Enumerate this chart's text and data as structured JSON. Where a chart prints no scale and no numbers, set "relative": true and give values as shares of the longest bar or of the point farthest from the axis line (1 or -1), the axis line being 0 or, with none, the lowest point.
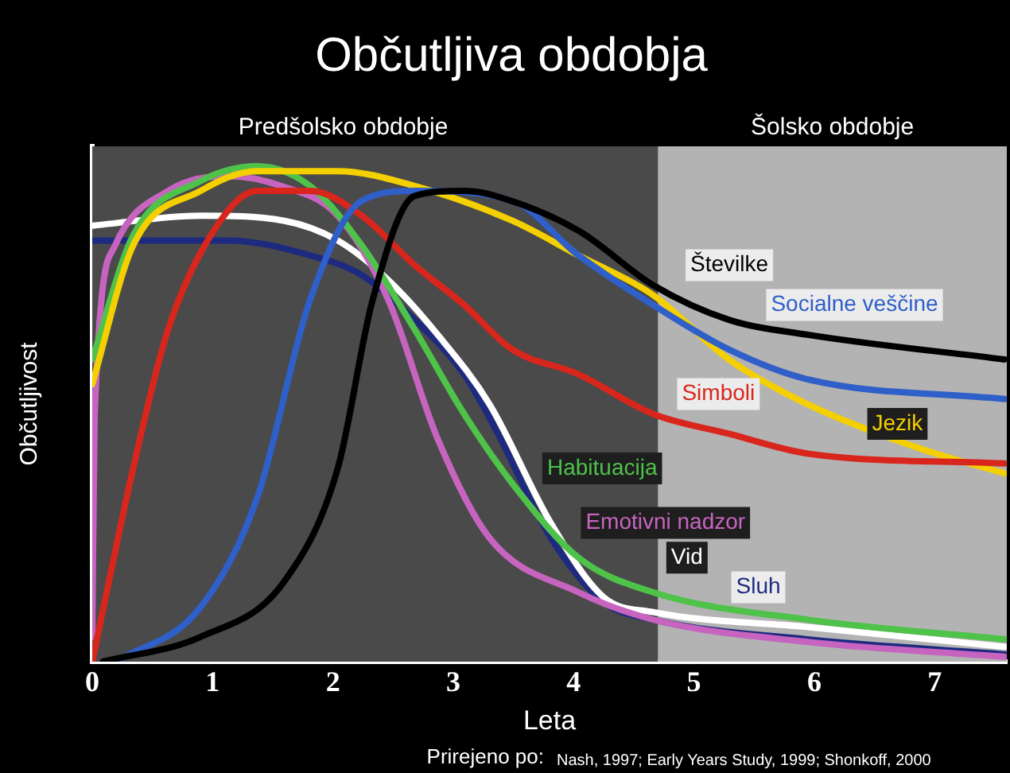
{
  "chart_data": {
    "type": "line",
    "title": "Občutljiva obdobja",
    "xlabel": "Leta",
    "ylabel": "Občutljivost",
    "relative": true,
    "xlim": [
      0,
      7.6
    ],
    "xticks": [
      0,
      1,
      2,
      3,
      4,
      5,
      6,
      7
    ],
    "grid": false,
    "legend": false,
    "marker": "none",
    "line_style": "solid",
    "bands": [
      {
        "axis": "x",
        "from": 0,
        "to": 4.7,
        "label": "Predšolsko obdobje",
        "color": "#4a4a4a"
      },
      {
        "axis": "x",
        "from": 4.7,
        "to": 7.6,
        "label": "Šolsko obdobje",
        "color": "#b3b3b3"
      }
    ],
    "annotations": [
      "Prirejeno po:",
      "Nash, 1997; Early Years Study, 1999; Shonkoff, 2000"
    ],
    "series": [
      {
        "name": "Številke",
        "color": "#000000",
        "x": [
          0.09,
          0.9,
          1.59,
          2.04,
          2.33,
          2.68,
          3.09,
          3.35,
          4.04,
          4.66,
          5.29,
          5.94,
          7.58
        ],
        "values": [
          0,
          0.05,
          0.16,
          0.39,
          0.73,
          0.94,
          0.95,
          0.94,
          0.87,
          0.76,
          0.69,
          0.66,
          0.61
        ]
      },
      {
        "name": "Socialne veščine",
        "color": "#2f5fc8",
        "x": [
          0.2,
          0.9,
          1.37,
          1.81,
          2.24,
          2.68,
          3.49,
          4.04,
          4.66,
          5.29,
          5.94,
          7.58
        ],
        "values": [
          0,
          0.11,
          0.33,
          0.73,
          0.93,
          0.95,
          0.93,
          0.82,
          0.72,
          0.63,
          0.57,
          0.53
        ]
      },
      {
        "name": "Simboli",
        "color": "#d9261c",
        "x": [
          0,
          0.34,
          0.63,
          1.01,
          1.37,
          1.81,
          2.24,
          2.68,
          3.09,
          3.49,
          4.04,
          4.66,
          5.29,
          5.94,
          7.58
        ],
        "values": [
          0,
          0.39,
          0.67,
          0.87,
          0.95,
          0.95,
          0.9,
          0.8,
          0.72,
          0.63,
          0.58,
          0.5,
          0.46,
          0.42,
          0.4
        ]
      },
      {
        "name": "Jezik",
        "color": "#f5d000",
        "x": [
          0,
          0.34,
          0.9,
          1.37,
          2.04,
          2.68,
          3.49,
          4.04,
          4.66,
          5.29,
          5.94,
          6.88,
          7.58
        ],
        "values": [
          0.56,
          0.84,
          0.95,
          0.99,
          0.99,
          0.96,
          0.89,
          0.82,
          0.74,
          0.61,
          0.52,
          0.43,
          0.38
        ]
      },
      {
        "name": "Habituacija",
        "color": "#4fc24a",
        "x": [
          0,
          0.34,
          0.9,
          1.37,
          1.81,
          2.24,
          2.68,
          3.09,
          3.49,
          4.04,
          4.66,
          5.94,
          7.58
        ],
        "values": [
          0.61,
          0.86,
          0.97,
          1,
          0.96,
          0.84,
          0.67,
          0.5,
          0.36,
          0.21,
          0.14,
          0.085,
          0.045
        ]
      },
      {
        "name": "Emotivni nadzor",
        "color": "#c764c0",
        "x": [
          0,
          0.02,
          0.19,
          0.63,
          1.13,
          1.57,
          2.04,
          2.46,
          2.87,
          3.3,
          4.04,
          4.66,
          5.94,
          7.58
        ],
        "values": [
          0.05,
          0.5,
          0.84,
          0.95,
          0.98,
          0.96,
          0.9,
          0.73,
          0.45,
          0.25,
          0.14,
          0.085,
          0.04,
          0.01
        ]
      },
      {
        "name": "Vid",
        "color": "#ffffff",
        "x": [
          0,
          0.9,
          1.59,
          2.04,
          2.46,
          2.87,
          3.3,
          3.81,
          4.25,
          4.66,
          5.94,
          7.58
        ],
        "values": [
          0.88,
          0.9,
          0.89,
          0.85,
          0.77,
          0.66,
          0.52,
          0.28,
          0.13,
          0.1,
          0.07,
          0.03
        ]
      },
      {
        "name": "Sluh",
        "color": "#1e2a80",
        "x": [
          0,
          1.13,
          1.81,
          2.24,
          2.68,
          3.09,
          3.35,
          3.81,
          4.25,
          4.66,
          5.94,
          7.58
        ],
        "values": [
          0.85,
          0.85,
          0.82,
          0.78,
          0.69,
          0.58,
          0.47,
          0.25,
          0.12,
          0.085,
          0.045,
          0.015
        ]
      }
    ]
  }
}
